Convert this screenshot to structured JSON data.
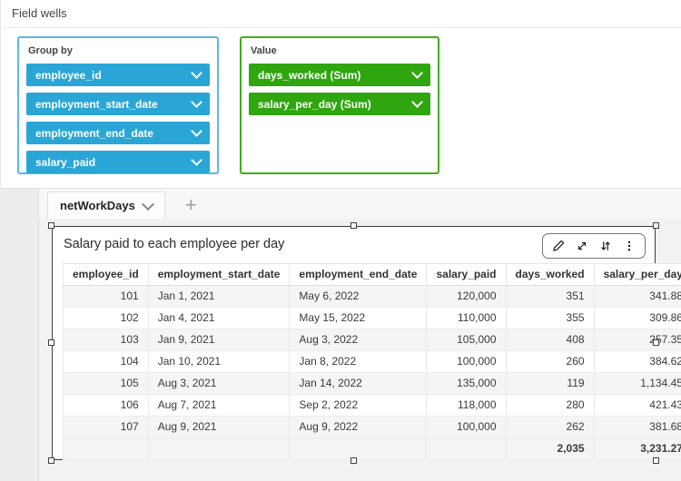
{
  "colors": {
    "dimension_blue": "#2aa6d6",
    "group_box_border": "#5bb7e3",
    "measure_green": "#2fa60f",
    "value_box_border": "#3fae1c"
  },
  "field_wells": {
    "title": "Field wells",
    "group_by": {
      "label": "Group by",
      "items": [
        "employee_id",
        "employment_start_date",
        "employment_end_date",
        "salary_paid"
      ]
    },
    "value": {
      "label": "Value",
      "items": [
        "days_worked (Sum)",
        "salary_per_day (Sum)"
      ]
    }
  },
  "sheet": {
    "tab": {
      "label": "netWorkDays",
      "add_tab_label": "+"
    },
    "visual": {
      "title": "Salary paid to each employee per day",
      "toolbar_icons": [
        "edit-pencil",
        "expand-arrows",
        "swap-arrows",
        "kebab-menu"
      ],
      "table": {
        "columns": [
          {
            "label": "employee_id",
            "align": "right",
            "width": 96
          },
          {
            "label": "employment_start_date",
            "align": "left",
            "width": 140
          },
          {
            "label": "employment_end_date",
            "align": "left",
            "width": 122
          },
          {
            "label": "salary_paid",
            "align": "right",
            "width": 88
          },
          {
            "label": "days_worked",
            "align": "right",
            "width": 68
          },
          {
            "label": "salary_per_day",
            "align": "right",
            "width": 93
          }
        ],
        "rows": [
          [
            "101",
            "Jan 1, 2021",
            "May 6, 2022",
            "120,000",
            "351",
            "341.88"
          ],
          [
            "102",
            "Jan 4, 2021",
            "May 15, 2022",
            "110,000",
            "355",
            "309.86"
          ],
          [
            "103",
            "Jan 9, 2021",
            "Aug 3, 2022",
            "105,000",
            "408",
            "257.35"
          ],
          [
            "104",
            "Jan 10, 2021",
            "Jan 8, 2022",
            "100,000",
            "260",
            "384.62"
          ],
          [
            "105",
            "Aug 3, 2021",
            "Jan 14, 2022",
            "135,000",
            "119",
            "1,134.45"
          ],
          [
            "106",
            "Aug 7, 2021",
            "Sep 2, 2022",
            "118,000",
            "280",
            "421.43"
          ],
          [
            "107",
            "Aug 9, 2021",
            "Aug 9, 2022",
            "100,000",
            "262",
            "381.68"
          ]
        ],
        "totals": [
          "",
          "",
          "",
          "",
          "2,035",
          "3,231.27"
        ]
      }
    }
  }
}
